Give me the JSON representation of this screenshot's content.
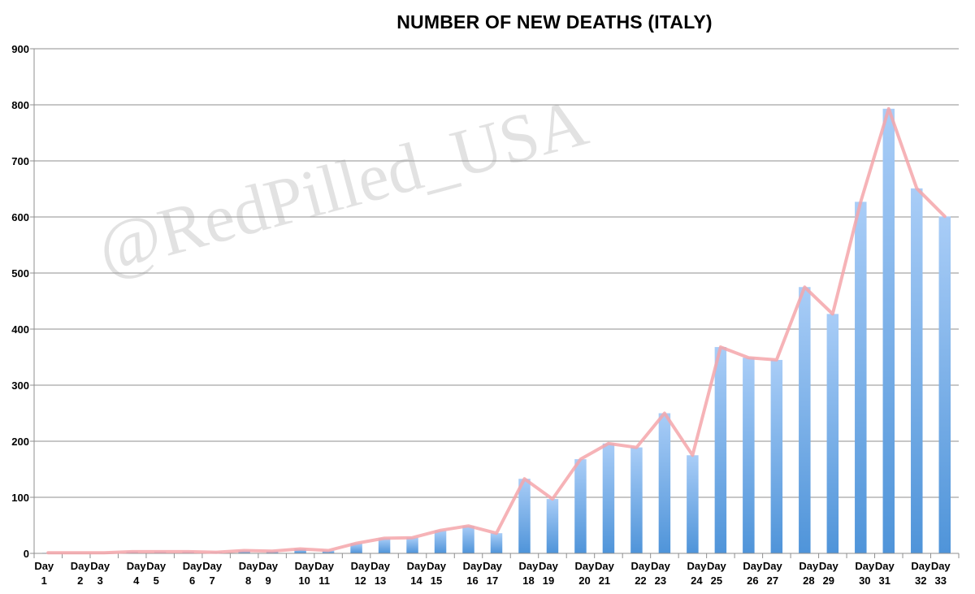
{
  "chart_data": {
    "type": "bar",
    "title": "NUMBER OF NEW DEATHS (ITALY)",
    "xlabel": "",
    "ylabel": "",
    "ylim": [
      0,
      900
    ],
    "yticks": [
      "0",
      "100",
      "200",
      "300",
      "400",
      "500",
      "600",
      "700",
      "800",
      "900"
    ],
    "grid": true,
    "legend": "none",
    "categories": [
      "Day 1",
      "Day 2",
      "Day 3",
      "Day 4",
      "Day 5",
      "Day 6",
      "Day 7",
      "Day 8",
      "Day 9",
      "Day 10",
      "Day 11",
      "Day 12",
      "Day 13",
      "Day 14",
      "Day 15",
      "Day 16",
      "Day 17",
      "Day 18",
      "Day 19",
      "Day 20",
      "Day 21",
      "Day 22",
      "Day 23",
      "Day 24",
      "Day 25",
      "Day 26",
      "Day 27",
      "Day 28",
      "Day 29",
      "Day 30",
      "Day 31",
      "Day 32",
      "Day 33"
    ],
    "values": [
      1,
      1,
      1,
      3,
      3,
      3,
      2,
      5,
      4,
      8,
      5,
      18,
      27,
      28,
      41,
      49,
      36,
      133,
      97,
      168,
      196,
      189,
      250,
      175,
      368,
      349,
      345,
      475,
      427,
      627,
      793,
      651,
      601
    ],
    "overlay_line_values": [
      1,
      1,
      1,
      3,
      3,
      3,
      2,
      5,
      4,
      8,
      5,
      18,
      27,
      28,
      41,
      49,
      36,
      133,
      97,
      168,
      196,
      189,
      250,
      175,
      368,
      349,
      345,
      475,
      427,
      627,
      793,
      651,
      601
    ],
    "bar_color_top": "#a9cdf7",
    "bar_color_bottom": "#4f94d9",
    "line_color": "#f4a6aa",
    "watermark": "@RedPilled_USA"
  }
}
